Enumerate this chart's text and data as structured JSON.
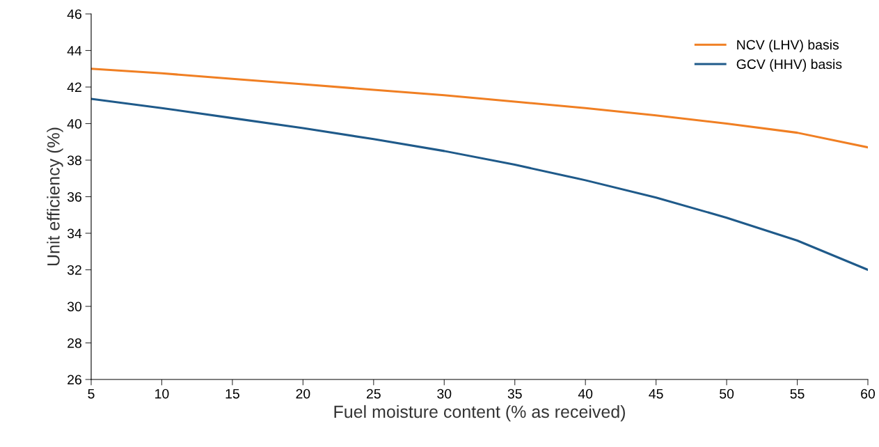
{
  "chart_data": {
    "type": "line",
    "xlabel": "Fuel moisture content (% as received)",
    "ylabel": "Unit efficiency (%)",
    "x": [
      5,
      10,
      15,
      20,
      25,
      30,
      35,
      40,
      45,
      50,
      55,
      60
    ],
    "series": [
      {
        "name": "NCV (LHV) basis",
        "color": "#f07f23",
        "values": [
          43.0,
          42.75,
          42.45,
          42.15,
          41.85,
          41.55,
          41.2,
          40.85,
          40.45,
          40.0,
          39.5,
          38.7
        ]
      },
      {
        "name": "GCV (HHV) basis",
        "color": "#1f5a8a",
        "values": [
          41.35,
          40.85,
          40.3,
          39.75,
          39.15,
          38.5,
          37.75,
          36.9,
          35.95,
          34.85,
          33.6,
          32.0
        ]
      }
    ],
    "xlim": [
      5,
      60
    ],
    "xticks": [
      5,
      10,
      15,
      20,
      25,
      30,
      35,
      40,
      45,
      50,
      55,
      60
    ],
    "ylim": [
      26,
      46
    ],
    "yticks": [
      26,
      28,
      30,
      32,
      34,
      36,
      38,
      40,
      42,
      44,
      46
    ],
    "grid": false,
    "legend": "top right",
    "marker": "none",
    "line_style": "solid"
  }
}
